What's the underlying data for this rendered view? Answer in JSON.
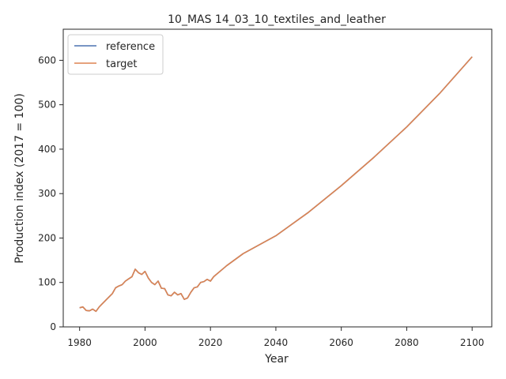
{
  "chart_data": {
    "type": "line",
    "title": "10_MAS 14_03_10_textiles_and_leather",
    "xlabel": "Year",
    "ylabel": "Production index (2017 = 100)",
    "xlim": [
      1975,
      2106
    ],
    "ylim": [
      0,
      670
    ],
    "xticks": [
      1980,
      2000,
      2020,
      2040,
      2060,
      2080,
      2100
    ],
    "yticks": [
      0,
      100,
      200,
      300,
      400,
      500,
      600
    ],
    "grid": false,
    "legend_position": "top-left",
    "series": [
      {
        "name": "reference",
        "color": "#4c72b0",
        "x": [
          1980,
          1981,
          1982,
          1983,
          1984,
          1985,
          1986,
          1988,
          1990,
          1991,
          1992,
          1993,
          1994,
          1995,
          1996,
          1997,
          1998,
          1999,
          2000,
          2001,
          2002,
          2003,
          2004,
          2005,
          2006,
          2007,
          2008,
          2009,
          2010,
          2011,
          2012,
          2013,
          2014,
          2015,
          2016,
          2017,
          2018,
          2019,
          2020,
          2021,
          2025,
          2030,
          2040,
          2050,
          2060,
          2070,
          2080,
          2090,
          2100
        ],
        "y": [
          43,
          45,
          37,
          36,
          40,
          35,
          45,
          60,
          75,
          88,
          92,
          95,
          103,
          108,
          113,
          130,
          122,
          118,
          125,
          110,
          100,
          95,
          103,
          87,
          86,
          72,
          70,
          78,
          72,
          75,
          62,
          65,
          78,
          88,
          90,
          100,
          102,
          107,
          103,
          113,
          138,
          165,
          205,
          258,
          318,
          382,
          450,
          525,
          608
        ]
      },
      {
        "name": "target",
        "color": "#dd8452",
        "x": [
          1980,
          1981,
          1982,
          1983,
          1984,
          1985,
          1986,
          1988,
          1990,
          1991,
          1992,
          1993,
          1994,
          1995,
          1996,
          1997,
          1998,
          1999,
          2000,
          2001,
          2002,
          2003,
          2004,
          2005,
          2006,
          2007,
          2008,
          2009,
          2010,
          2011,
          2012,
          2013,
          2014,
          2015,
          2016,
          2017,
          2018,
          2019,
          2020,
          2021,
          2025,
          2030,
          2040,
          2050,
          2060,
          2070,
          2080,
          2090,
          2100
        ],
        "y": [
          43,
          45,
          37,
          36,
          40,
          35,
          45,
          60,
          75,
          88,
          92,
          95,
          103,
          108,
          113,
          130,
          122,
          118,
          125,
          110,
          100,
          95,
          103,
          87,
          86,
          72,
          70,
          78,
          72,
          75,
          62,
          65,
          78,
          88,
          90,
          100,
          102,
          107,
          103,
          113,
          138,
          165,
          205,
          258,
          318,
          382,
          450,
          525,
          608
        ]
      }
    ]
  }
}
